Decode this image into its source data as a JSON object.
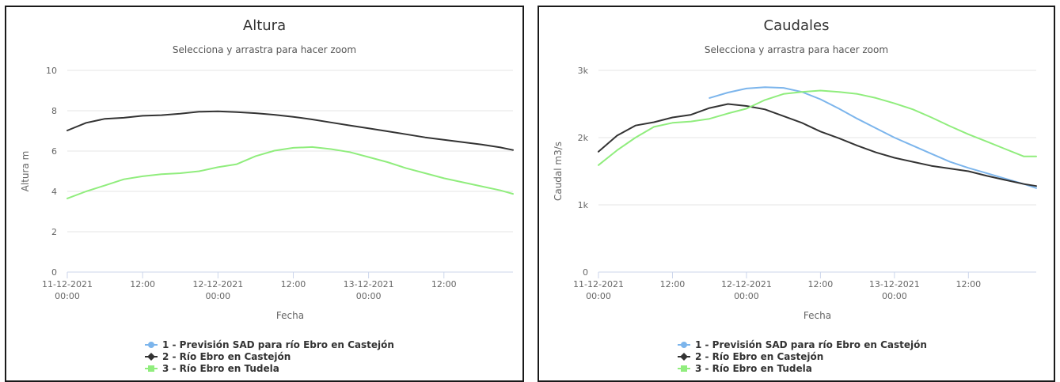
{
  "chart_data": [
    {
      "type": "line",
      "title": "Altura",
      "subtitle": "Selecciona y arrastra para hacer zoom",
      "xlabel": "Fecha",
      "ylabel": "Altura m",
      "xlim": [
        "11-12-2021 00:00",
        "13-12-2021 23:00"
      ],
      "ylim": [
        0,
        10
      ],
      "yticks": [
        {
          "value": 0,
          "label": "0"
        },
        {
          "value": 2,
          "label": "2"
        },
        {
          "value": 4,
          "label": "4"
        },
        {
          "value": 6,
          "label": "6"
        },
        {
          "value": 8,
          "label": "8"
        },
        {
          "value": 10,
          "label": "10"
        }
      ],
      "xticks": [
        {
          "value": "11-12-2021 00:00",
          "label": "11-12-2021",
          "label2": "00:00"
        },
        {
          "value": "11-12-2021 12:00",
          "label": "12:00",
          "label2": ""
        },
        {
          "value": "12-12-2021 00:00",
          "label": "12-12-2021",
          "label2": "00:00"
        },
        {
          "value": "12-12-2021 12:00",
          "label": "12:00",
          "label2": ""
        },
        {
          "value": "13-12-2021 00:00",
          "label": "13-12-2021",
          "label2": "00:00"
        },
        {
          "value": "13-12-2021 12:00",
          "label": "12:00",
          "label2": ""
        }
      ],
      "grid": true,
      "legend_position": "bottom-center",
      "legend": [
        {
          "label": "1 - Previsión SAD para río Ebro en Castejón",
          "color": "#7cb5ec",
          "marker": "circle"
        },
        {
          "label": "2 - Río Ebro en Castejón",
          "color": "#333333",
          "marker": "diamond"
        },
        {
          "label": "3 - Río Ebro en Tudela",
          "color": "#90ed7d",
          "marker": "square"
        }
      ],
      "series": [
        {
          "name": "2 - Río Ebro en Castejón",
          "color": "#333333",
          "x": [
            "11-12-2021 00:00",
            "11-12-2021 03:00",
            "11-12-2021 06:00",
            "11-12-2021 09:00",
            "11-12-2021 12:00",
            "11-12-2021 15:00",
            "11-12-2021 18:00",
            "11-12-2021 21:00",
            "12-12-2021 00:00",
            "12-12-2021 03:00",
            "12-12-2021 06:00",
            "12-12-2021 09:00",
            "12-12-2021 12:00",
            "12-12-2021 15:00",
            "12-12-2021 18:00",
            "12-12-2021 21:00",
            "13-12-2021 00:00",
            "13-12-2021 03:00",
            "13-12-2021 06:00",
            "13-12-2021 09:00",
            "13-12-2021 12:00",
            "13-12-2021 15:00",
            "13-12-2021 18:00",
            "13-12-2021 21:00",
            "13-12-2021 23:00"
          ],
          "y": [
            7.02,
            7.4,
            7.6,
            7.65,
            7.75,
            7.78,
            7.85,
            7.95,
            7.97,
            7.93,
            7.88,
            7.8,
            7.7,
            7.57,
            7.42,
            7.27,
            7.13,
            6.98,
            6.83,
            6.68,
            6.56,
            6.44,
            6.32,
            6.18,
            6.05
          ]
        },
        {
          "name": "3 - Río Ebro en Tudela",
          "color": "#90ed7d",
          "x": [
            "11-12-2021 00:00",
            "11-12-2021 03:00",
            "11-12-2021 06:00",
            "11-12-2021 09:00",
            "11-12-2021 12:00",
            "11-12-2021 15:00",
            "11-12-2021 18:00",
            "11-12-2021 21:00",
            "12-12-2021 00:00",
            "12-12-2021 03:00",
            "12-12-2021 06:00",
            "12-12-2021 09:00",
            "12-12-2021 12:00",
            "12-12-2021 15:00",
            "12-12-2021 18:00",
            "12-12-2021 21:00",
            "13-12-2021 00:00",
            "13-12-2021 03:00",
            "13-12-2021 06:00",
            "13-12-2021 09:00",
            "13-12-2021 12:00",
            "13-12-2021 15:00",
            "13-12-2021 18:00",
            "13-12-2021 21:00",
            "13-12-2021 23:00"
          ],
          "y": [
            3.65,
            4.0,
            4.3,
            4.6,
            4.75,
            4.85,
            4.9,
            5.0,
            5.2,
            5.35,
            5.75,
            6.02,
            6.16,
            6.2,
            6.1,
            5.95,
            5.7,
            5.45,
            5.15,
            4.9,
            4.65,
            4.45,
            4.25,
            4.05,
            3.88
          ]
        }
      ]
    },
    {
      "type": "line",
      "title": "Caudales",
      "subtitle": "Selecciona y arrastra para hacer zoom",
      "xlabel": "Fecha",
      "ylabel": "Caudal m3/s",
      "xlim": [
        "11-12-2021 00:00",
        "13-12-2021 23:00"
      ],
      "ylim": [
        0,
        3000
      ],
      "yticks": [
        {
          "value": 0,
          "label": "0"
        },
        {
          "value": 1000,
          "label": "1k"
        },
        {
          "value": 2000,
          "label": "2k"
        },
        {
          "value": 3000,
          "label": "3k"
        }
      ],
      "xticks": [
        {
          "value": "11-12-2021 00:00",
          "label": "11-12-2021",
          "label2": "00:00"
        },
        {
          "value": "11-12-2021 12:00",
          "label": "12:00",
          "label2": ""
        },
        {
          "value": "12-12-2021 00:00",
          "label": "12-12-2021",
          "label2": "00:00"
        },
        {
          "value": "12-12-2021 12:00",
          "label": "12:00",
          "label2": ""
        },
        {
          "value": "13-12-2021 00:00",
          "label": "13-12-2021",
          "label2": "00:00"
        },
        {
          "value": "13-12-2021 12:00",
          "label": "12:00",
          "label2": ""
        }
      ],
      "grid": true,
      "legend_position": "bottom-center",
      "legend": [
        {
          "label": "1 - Previsión SAD para río Ebro en Castejón",
          "color": "#7cb5ec",
          "marker": "circle"
        },
        {
          "label": "2 - Río Ebro en Castejón",
          "color": "#333333",
          "marker": "diamond"
        },
        {
          "label": "3 - Río Ebro en Tudela",
          "color": "#90ed7d",
          "marker": "square"
        }
      ],
      "series": [
        {
          "name": "1 - Previsión SAD para río Ebro en Castejón",
          "color": "#7cb5ec",
          "x": [
            "11-12-2021 18:00",
            "11-12-2021 21:00",
            "12-12-2021 00:00",
            "12-12-2021 03:00",
            "12-12-2021 06:00",
            "12-12-2021 09:00",
            "12-12-2021 12:00",
            "12-12-2021 15:00",
            "12-12-2021 18:00",
            "12-12-2021 21:00",
            "13-12-2021 00:00",
            "13-12-2021 03:00",
            "13-12-2021 06:00",
            "13-12-2021 09:00",
            "13-12-2021 12:00",
            "13-12-2021 15:00",
            "13-12-2021 18:00",
            "13-12-2021 21:00",
            "13-12-2021 23:00"
          ],
          "y": [
            2590,
            2670,
            2730,
            2750,
            2740,
            2680,
            2570,
            2430,
            2280,
            2140,
            2000,
            1880,
            1760,
            1640,
            1550,
            1470,
            1390,
            1310,
            1250
          ]
        },
        {
          "name": "2 - Río Ebro en Castejón",
          "color": "#333333",
          "x": [
            "11-12-2021 00:00",
            "11-12-2021 03:00",
            "11-12-2021 06:00",
            "11-12-2021 09:00",
            "11-12-2021 12:00",
            "11-12-2021 15:00",
            "11-12-2021 18:00",
            "11-12-2021 21:00",
            "12-12-2021 00:00",
            "12-12-2021 03:00",
            "12-12-2021 06:00",
            "12-12-2021 09:00",
            "12-12-2021 12:00",
            "12-12-2021 15:00",
            "12-12-2021 18:00",
            "12-12-2021 21:00",
            "13-12-2021 00:00",
            "13-12-2021 03:00",
            "13-12-2021 06:00",
            "13-12-2021 09:00",
            "13-12-2021 12:00",
            "13-12-2021 15:00",
            "13-12-2021 18:00",
            "13-12-2021 21:00",
            "13-12-2021 23:00"
          ],
          "y": [
            1790,
            2030,
            2180,
            2230,
            2300,
            2340,
            2440,
            2500,
            2470,
            2420,
            2320,
            2220,
            2090,
            1990,
            1880,
            1780,
            1700,
            1640,
            1580,
            1540,
            1500,
            1430,
            1370,
            1310,
            1280
          ]
        },
        {
          "name": "3 - Río Ebro en Tudela",
          "color": "#90ed7d",
          "x": [
            "11-12-2021 00:00",
            "11-12-2021 03:00",
            "11-12-2021 06:00",
            "11-12-2021 09:00",
            "11-12-2021 12:00",
            "11-12-2021 15:00",
            "11-12-2021 18:00",
            "11-12-2021 21:00",
            "12-12-2021 00:00",
            "12-12-2021 03:00",
            "12-12-2021 06:00",
            "12-12-2021 09:00",
            "12-12-2021 12:00",
            "12-12-2021 15:00",
            "12-12-2021 18:00",
            "12-12-2021 21:00",
            "13-12-2021 00:00",
            "13-12-2021 03:00",
            "13-12-2021 06:00",
            "13-12-2021 09:00",
            "13-12-2021 12:00",
            "13-12-2021 15:00",
            "13-12-2021 18:00",
            "13-12-2021 21:00",
            "13-12-2021 23:00"
          ],
          "y": [
            1590,
            1810,
            2000,
            2160,
            2220,
            2240,
            2280,
            2360,
            2430,
            2560,
            2650,
            2680,
            2700,
            2680,
            2650,
            2590,
            2510,
            2420,
            2300,
            2170,
            2050,
            1940,
            1830,
            1720,
            1720
          ]
        }
      ]
    }
  ]
}
